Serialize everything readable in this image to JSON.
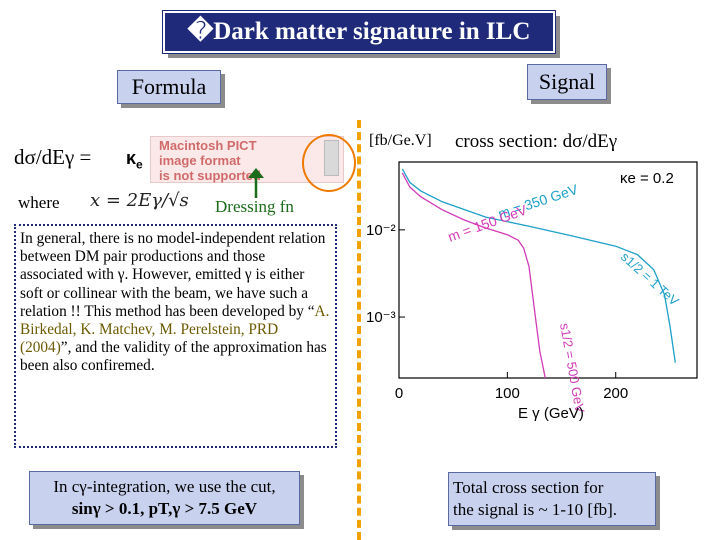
{
  "header": {
    "title": "�Dark matter signature in ILC"
  },
  "left": {
    "formula_label": "Formula",
    "formula_lhs": "dσ/dEγ =",
    "kappa": "κ",
    "kappa_sub": "e",
    "placeholder_text": [
      "Macintosh PICT",
      "image format",
      "is not supported"
    ],
    "where_label": "where",
    "x_def": "x = 2Eγ/√s",
    "dressing_label": "Dressing fn",
    "explanation_parts": [
      "In general,  there is no model-independent relation between DM pair productions and those associated with γ. However, emitted γ is either soft or collinear with the beam, we have such a relation !! This method has been developed by “",
      "A. Birkedal, K. Matchev, M. Perelstein, PRD (2004)",
      "”, and the validity of the approximation has been also confiremed."
    ],
    "cut_line1": "In cγ-integration, we use the cut,",
    "cut_line2": "sinγ > 0.1,  pT,γ > 7.5 GeV"
  },
  "right": {
    "signal_label": "Signal",
    "unit_label": "[fb/Ge.V]",
    "xsec_label": "cross section: dσ/dEγ",
    "total_line1": "Total cross section for",
    "total_line2": "the signal is ~ 1-10 [fb]."
  },
  "chart_data": {
    "type": "line",
    "title": "",
    "annotation": "κe = 0.2",
    "xlabel": "E γ (GeV)",
    "ylabel": "",
    "x_ticks": [
      "0",
      "100",
      "200"
    ],
    "y_ticks": [
      "10⁻²",
      "10⁻³"
    ],
    "xlim": [
      0,
      275
    ],
    "ylim": [
      0.0002,
      0.06
    ],
    "y_scale": "log",
    "series": [
      {
        "name": "m = 150 GeV",
        "color": "#d23ab8",
        "x": [
          3,
          10,
          20,
          40,
          60,
          80,
          100,
          110,
          115,
          120,
          125,
          130,
          135
        ],
        "y": [
          0.045,
          0.031,
          0.024,
          0.017,
          0.013,
          0.0105,
          0.0088,
          0.0076,
          0.0062,
          0.0038,
          0.0012,
          0.0004,
          0.0002
        ]
      },
      {
        "name": "m = 350 GeV",
        "color": "#1ea0c8",
        "x": [
          3,
          10,
          20,
          40,
          80,
          120,
          160,
          200,
          220,
          235,
          245,
          250,
          255
        ],
        "y": [
          0.05,
          0.035,
          0.028,
          0.021,
          0.014,
          0.011,
          0.0085,
          0.0065,
          0.0052,
          0.0035,
          0.0018,
          0.0008,
          0.0003
        ]
      }
    ],
    "curve_labels": [
      {
        "text": "m = 350 GeV",
        "color": "#1ea0c8"
      },
      {
        "text": "m = 150 GeV",
        "color": "#d23ab8"
      },
      {
        "text": "s1/2 = 500 GeV",
        "color": "#d23ab8"
      },
      {
        "text": "s1/2 = 1 TeV",
        "color": "#1ea0c8"
      }
    ]
  }
}
